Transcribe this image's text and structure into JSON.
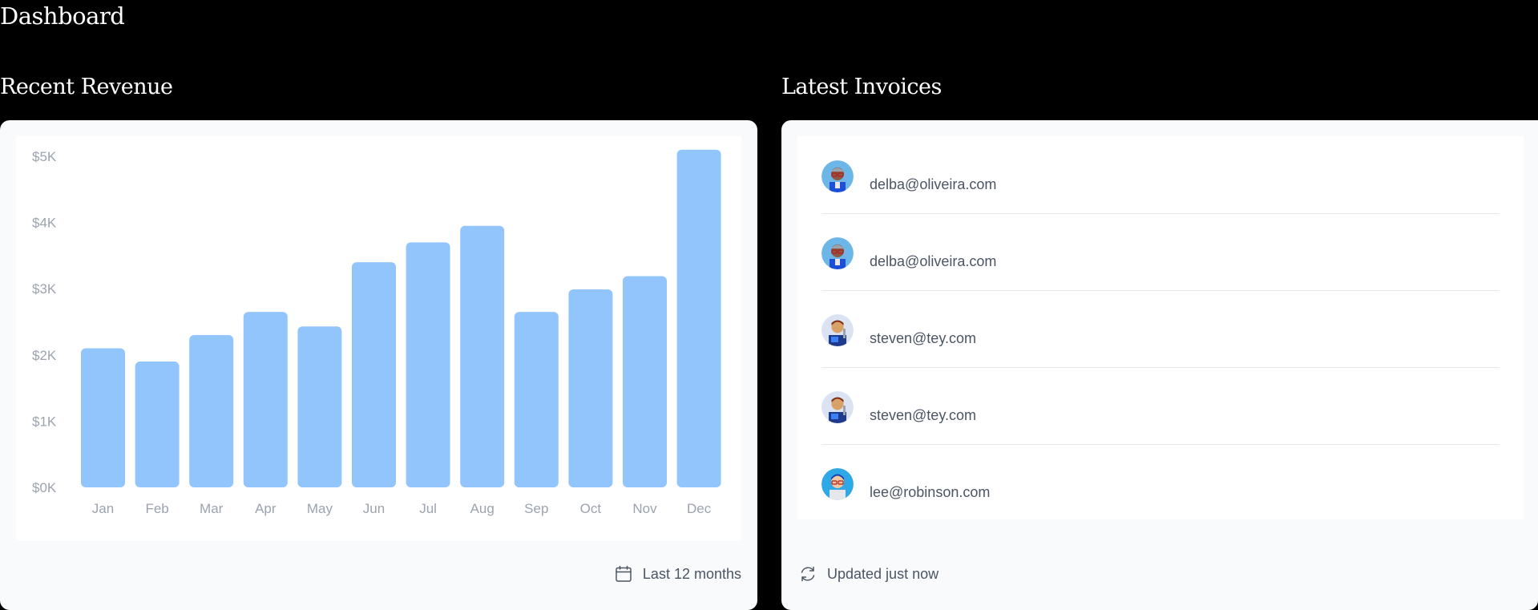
{
  "page": {
    "title": "Dashboard"
  },
  "revenue": {
    "section_title": "Recent Revenue",
    "footer_label": "Last 12 months",
    "footer_icon": "calendar-icon"
  },
  "invoices": {
    "section_title": "Latest Invoices",
    "footer_label": "Updated just now",
    "footer_icon": "refresh-icon",
    "items": [
      {
        "email": "delba@oliveira.com",
        "avatar": "avatar-delba"
      },
      {
        "email": "delba@oliveira.com",
        "avatar": "avatar-delba"
      },
      {
        "email": "steven@tey.com",
        "avatar": "avatar-steven"
      },
      {
        "email": "steven@tey.com",
        "avatar": "avatar-steven"
      },
      {
        "email": "lee@robinson.com",
        "avatar": "avatar-lee"
      }
    ]
  },
  "chart_data": {
    "type": "bar",
    "categories": [
      "Jan",
      "Feb",
      "Mar",
      "Apr",
      "May",
      "Jun",
      "Jul",
      "Aug",
      "Sep",
      "Oct",
      "Nov",
      "Dec"
    ],
    "values": [
      2100,
      1900,
      2300,
      2650,
      2430,
      3400,
      3700,
      3950,
      2650,
      2990,
      3190,
      5100
    ],
    "y_ticks": [
      "$0K",
      "$1K",
      "$2K",
      "$3K",
      "$4K",
      "$5K"
    ],
    "ylim": [
      0,
      5000
    ],
    "bar_color": "#93c5fd",
    "grid": false
  },
  "colors": {
    "background": "#000000",
    "card": "#f9fafb",
    "bar": "#93c5fd",
    "muted_text": "#4b5563",
    "axis_text": "#9ca3af"
  }
}
